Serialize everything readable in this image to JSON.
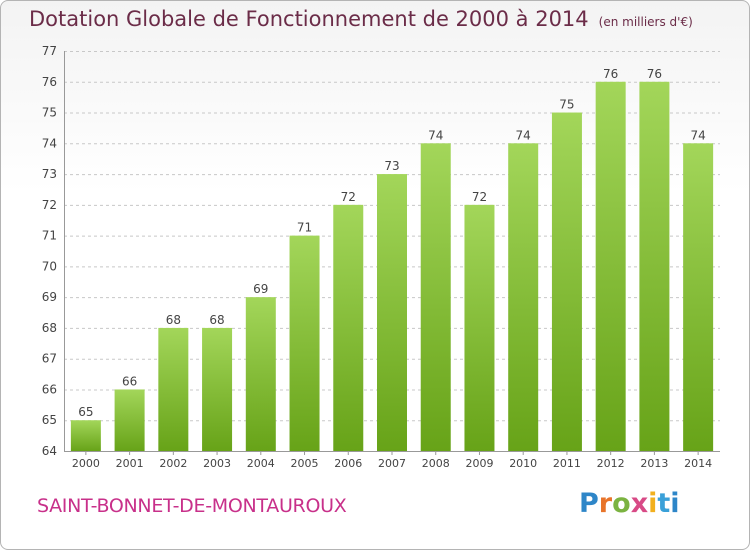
{
  "header": {
    "title": "Dotation Globale de Fonctionnement de 2000 à 2014",
    "subtitle": "(en milliers d'€)"
  },
  "footer": {
    "commune": "SAINT-BONNET-DE-MONTAUROUX",
    "logo_letters": [
      "P",
      "r",
      "o",
      "x",
      "i",
      "t",
      "i"
    ],
    "logo_text": "Proxiti"
  },
  "colors": {
    "bar_light": "#a3d65a",
    "bar_dark": "#67a318",
    "title": "#6b2c48",
    "commune": "#c8308a",
    "grid": "#c8c8c8"
  },
  "chart_data": {
    "type": "bar",
    "title": "Dotation Globale de Fonctionnement de 2000 à 2014",
    "subtitle": "(en milliers d'€)",
    "categories": [
      "2000",
      "2001",
      "2002",
      "2003",
      "2004",
      "2005",
      "2006",
      "2007",
      "2008",
      "2009",
      "2010",
      "2011",
      "2012",
      "2013",
      "2014"
    ],
    "values": [
      65,
      66,
      68,
      68,
      69,
      71,
      72,
      73,
      74,
      72,
      74,
      75,
      76,
      76,
      74
    ],
    "ylim": [
      64,
      77
    ],
    "yticks": [
      64,
      65,
      66,
      67,
      68,
      69,
      70,
      71,
      72,
      73,
      74,
      75,
      76,
      77
    ],
    "grid": true,
    "data_labels": true
  }
}
